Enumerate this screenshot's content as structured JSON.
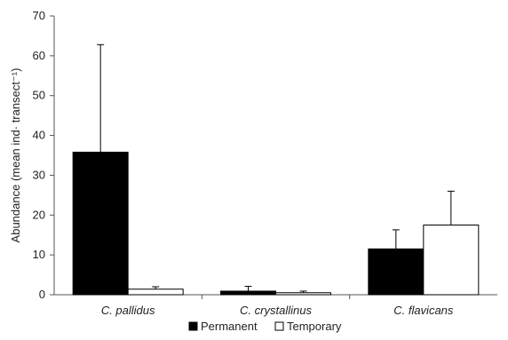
{
  "chart_data": {
    "type": "bar",
    "ylabel": "Abundance (mean ind· transect⁻¹)",
    "ylim": [
      0,
      70
    ],
    "yticks": [
      0,
      10,
      20,
      30,
      40,
      50,
      60,
      70
    ],
    "categories": [
      "C. pallidus",
      "C. crystallinus",
      "C. flavicans"
    ],
    "series": [
      {
        "name": "Permanent",
        "color": "#000000",
        "values": [
          35.8,
          0.9,
          11.5
        ],
        "errors": [
          27.0,
          1.2,
          4.8
        ]
      },
      {
        "name": "Temporary",
        "color": "#ffffff",
        "values": [
          1.4,
          0.5,
          17.5
        ],
        "errors": [
          0.6,
          0.4,
          8.5
        ]
      }
    ],
    "legend_position": "bottom-center",
    "grid": false
  }
}
